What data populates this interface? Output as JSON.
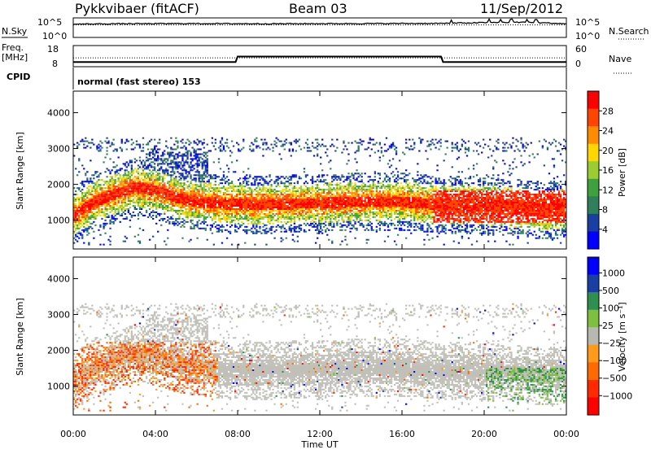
{
  "header": {
    "title": "Pykkvibaer (fitACF)",
    "beam": "Beam 03",
    "date": "11/Sep/2012"
  },
  "strip": {
    "nsky_label": "N.Sky",
    "nsearch_label": "N.Search",
    "noise_ticks_left": [
      "10^5",
      "10^0"
    ],
    "noise_ticks_right": [
      "10^5",
      "10^0"
    ],
    "freq_label": "Freq.",
    "freq_unit": "[MHz]",
    "freq_ticks": [
      "18",
      "8"
    ],
    "nave_label": "Nave",
    "nave_ticks": [
      "60",
      "0"
    ],
    "cpid_label": "CPID",
    "cpid_value": "normal (fast stereo) 153"
  },
  "colors": {
    "power_scale": [
      "#0000ff",
      "#1a3fa3",
      "#2f7f5a",
      "#3fa03f",
      "#9acd32",
      "#ffd700",
      "#ff8c00",
      "#ff4500",
      "#ff0000"
    ],
    "velocity_scale": [
      "#0000ff",
      "#1a3fa3",
      "#2f8f4f",
      "#7fbf3f",
      "#b8b8b0",
      "#ff9a1a",
      "#ff6a00",
      "#ff2a00",
      "#ff0000"
    ],
    "scatter_gray": "#c0c0b8"
  },
  "chart_data": [
    {
      "type": "heatmap",
      "name": "power",
      "ylabel": "Slant Range [km]",
      "xlabel": "Time UT",
      "ylim": [
        200,
        4600
      ],
      "y_ticks": [
        "1000",
        "2000",
        "3000",
        "4000"
      ],
      "x_ticks": [
        "00:00",
        "04:00",
        "08:00",
        "12:00",
        "16:00",
        "20:00",
        "00:00"
      ],
      "colorbar_label": "Power [dB]",
      "colorbar_ticks": [
        "4",
        "8",
        "12",
        "16",
        "20",
        "24",
        "28"
      ],
      "band_ridge_km": [
        [
          0,
          1100
        ],
        [
          1,
          1500
        ],
        [
          2,
          1700
        ],
        [
          3,
          1900
        ],
        [
          4,
          1800
        ],
        [
          5,
          1600
        ],
        [
          6,
          1500
        ],
        [
          7,
          1450
        ],
        [
          8,
          1420
        ],
        [
          9,
          1400
        ],
        [
          10,
          1420
        ],
        [
          11,
          1450
        ],
        [
          12,
          1450
        ],
        [
          13,
          1480
        ],
        [
          14,
          1500
        ],
        [
          15,
          1500
        ],
        [
          16,
          1500
        ],
        [
          17,
          1450
        ],
        [
          18,
          1400
        ],
        [
          19,
          1400
        ],
        [
          20,
          1400
        ],
        [
          21,
          1350
        ],
        [
          22,
          1300
        ],
        [
          23,
          1250
        ],
        [
          24,
          1300
        ]
      ]
    },
    {
      "type": "heatmap",
      "name": "velocity",
      "ylabel": "Slant Range [km]",
      "xlabel": "Time UT",
      "ylim": [
        200,
        4600
      ],
      "y_ticks": [
        "1000",
        "2000",
        "3000",
        "4000"
      ],
      "x_ticks": [
        "00:00",
        "04:00",
        "08:00",
        "12:00",
        "16:00",
        "20:00",
        "00:00"
      ],
      "colorbar_label": "Velocity [m s⁻¹]",
      "colorbar_ticks": [
        "1000",
        "500",
        "100",
        "25",
        "−25",
        "−100",
        "−500",
        "−1000"
      ]
    },
    {
      "type": "line",
      "name": "noise",
      "ylim_log10": [
        0,
        5
      ],
      "series": [
        {
          "values_log10": [
            [
              0,
              3.4
            ],
            [
              2,
              3.5
            ],
            [
              6,
              3.55
            ],
            [
              10,
              3.5
            ],
            [
              14,
              3.55
            ],
            [
              18,
              3.6
            ],
            [
              20,
              3.8
            ],
            [
              22,
              3.9
            ],
            [
              24,
              3.5
            ]
          ]
        }
      ]
    },
    {
      "type": "line",
      "name": "frequency_nave",
      "freq_ylim": [
        8,
        18
      ],
      "freq_series_mhz": [
        [
          0,
          10.2
        ],
        [
          7.9,
          10.2
        ],
        [
          8.0,
          12.8
        ],
        [
          17.9,
          12.8
        ],
        [
          18.0,
          10.2
        ],
        [
          24,
          10.2
        ]
      ],
      "nave_level": 16
    }
  ]
}
